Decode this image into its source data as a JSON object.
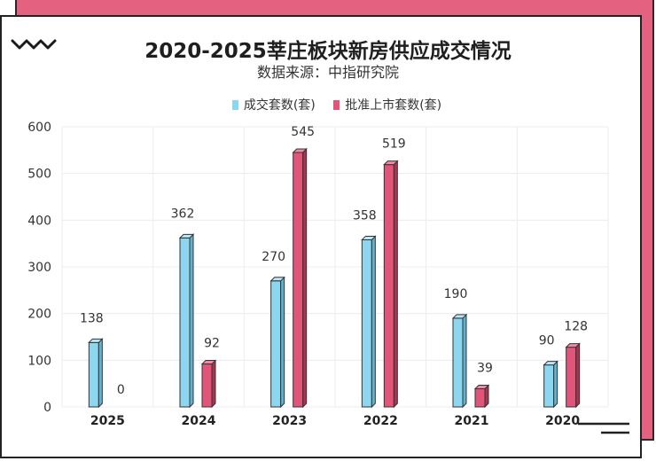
{
  "chart_data": {
    "type": "bar",
    "title": "2020-2025莘庄板块新房供应成交情况",
    "subtitle": "数据来源：中指研究院",
    "xlabel": "",
    "ylabel": "",
    "categories": [
      "2025",
      "2024",
      "2023",
      "2022",
      "2021",
      "2020"
    ],
    "series": [
      {
        "name": "成交套数(套)",
        "color": "#8dd6ef",
        "values": [
          138,
          362,
          270,
          358,
          190,
          90
        ]
      },
      {
        "name": "批准上市套数(套)",
        "color": "#e2557a",
        "values": [
          0,
          92,
          545,
          519,
          39,
          128
        ]
      }
    ],
    "ylim": [
      0,
      600
    ],
    "yticks": [
      0,
      100,
      200,
      300,
      400,
      500,
      600
    ],
    "grid": true,
    "legend_position": "top-center",
    "data_labels": true
  },
  "colors": {
    "accent": "#e4617f",
    "series1": "#8dd6ef",
    "series2": "#e2557a"
  },
  "decor": {
    "top_left_icon": "zigzag-icon",
    "bottom_right_icon": "double-line-icon"
  }
}
